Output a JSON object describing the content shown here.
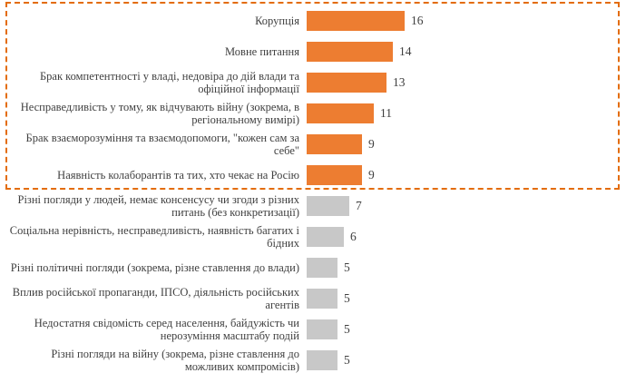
{
  "chart_data": {
    "type": "bar",
    "orientation": "horizontal",
    "title": "",
    "xlabel": "",
    "ylabel": "",
    "xlim": [
      0,
      17
    ],
    "grid": false,
    "legend": false,
    "colors": {
      "highlight": "#ED7D31",
      "muted": "#C8C8C8",
      "frame": "#E36C0A",
      "text": "#404040"
    },
    "highlight_frame": "dashed orange rectangle around top 6 highlighted bars",
    "items": [
      {
        "label": "Корупція",
        "value": 16,
        "highlight": true
      },
      {
        "label": "Мовне питання",
        "value": 14,
        "highlight": true
      },
      {
        "label": "Брак компетентності у владі, недовіра до дій влади та офіційної інформації",
        "value": 13,
        "highlight": true
      },
      {
        "label": "Несправедливість у тому, як відчувають війну (зокрема, в регіональному вимірі)",
        "value": 11,
        "highlight": true
      },
      {
        "label": "Брак взаєморозуміння та взаємодопомоги, \"кожен сам за себе\"",
        "value": 9,
        "highlight": true
      },
      {
        "label": "Наявність колаборантів та тих, хто чекає на Росію",
        "value": 9,
        "highlight": true
      },
      {
        "label": "Різні погляди у людей, немає консенсусу чи згоди з різних питань (без конкретизації)",
        "value": 7,
        "highlight": false
      },
      {
        "label": "Соціальна нерівність, несправедливість, наявність багатих і бідних",
        "value": 6,
        "highlight": false
      },
      {
        "label": "Різні політичні погляди (зокрема, різне ставлення до влади)",
        "value": 5,
        "highlight": false
      },
      {
        "label": "Вплив російської пропаганди, ІПСО, діяльність російських агентів",
        "value": 5,
        "highlight": false
      },
      {
        "label": "Недостатня свідомість серед населення,  байдужість чи нерозуміння масштабу подій",
        "value": 5,
        "highlight": false
      },
      {
        "label": "Різні погляди на війну (зокрема, різне ставлення до можливих компромісів)",
        "value": 5,
        "highlight": false
      }
    ]
  }
}
